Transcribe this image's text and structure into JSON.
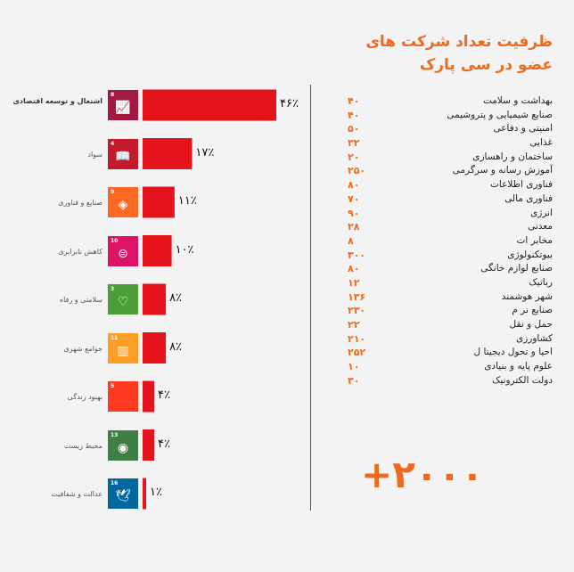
{
  "panel_title_line1": "ظرفیت تعداد شرکت های",
  "panel_title_line2": "عضو در سی پارک",
  "chart_data": {
    "type": "bar",
    "orientation": "horizontal",
    "categories": [
      "اشتغال و توسعه اقتصادی",
      "سواد",
      "صنایع و فناوری",
      "کاهش نابرابری",
      "سلامتی و رفاه",
      "جوامع شهری",
      "بهبود زندگی",
      "محیط زیست",
      "عدالت و شفافیت"
    ],
    "values": [
      46,
      17,
      11,
      10,
      8,
      8,
      4,
      4,
      1
    ],
    "value_labels": [
      "۴۶٪",
      "۱۷٪",
      "۱۱٪",
      "۱۰٪",
      "۸٪",
      "۸٪",
      "۴٪",
      "۴٪",
      "۱٪"
    ],
    "xlim": [
      0,
      46
    ],
    "bar_color": "#e5141c"
  },
  "sdg_icons": [
    {
      "num": "8",
      "color": "#a21942",
      "icon": "growth-chart-icon",
      "glyph": "📈"
    },
    {
      "num": "4",
      "color": "#c5192d",
      "icon": "book-icon",
      "glyph": "📖"
    },
    {
      "num": "9",
      "color": "#fd6925",
      "icon": "cubes-icon",
      "glyph": "◈"
    },
    {
      "num": "10",
      "color": "#dd1367",
      "icon": "equality-icon",
      "glyph": "⊜"
    },
    {
      "num": "3",
      "color": "#4c9f38",
      "icon": "heartbeat-icon",
      "glyph": "♡"
    },
    {
      "num": "11",
      "color": "#fd9d24",
      "icon": "buildings-icon",
      "glyph": "▥"
    },
    {
      "num": "5",
      "color": "#ff3a21",
      "icon": "blank-icon",
      "glyph": ""
    },
    {
      "num": "13",
      "color": "#3f7e44",
      "icon": "eye-icon",
      "glyph": "◉"
    },
    {
      "num": "16",
      "color": "#00689d",
      "icon": "dove-icon",
      "glyph": "🕊"
    }
  ],
  "sectors": [
    {
      "name": "بهداشت و سلامت",
      "count": "۴۰"
    },
    {
      "name": "صنایع شیمیایی و پتروشیمی",
      "count": "۴۰"
    },
    {
      "name": "امنیتی و دفاعی",
      "count": "۵۰"
    },
    {
      "name": "غذایی",
      "count": "۳۲"
    },
    {
      "name": "ساختمان و راهسازی",
      "count": "۲۰"
    },
    {
      "name": "آموزش رسانه و سرگرمی",
      "count": "۲۵۰"
    },
    {
      "name": "فناوری اطلاعات",
      "count": "۸۰"
    },
    {
      "name": "فناوری مالی",
      "count": "۷۰"
    },
    {
      "name": "انرژی",
      "count": "۹۰"
    },
    {
      "name": "معدنی",
      "count": "۲۸"
    },
    {
      "name": "مخابر ات",
      "count": "۸"
    },
    {
      "name": "بیوتکنولوژی",
      "count": "۳۰۰"
    },
    {
      "name": "صنایع لوازم خانگی",
      "count": "۸۰"
    },
    {
      "name": "رباتیک",
      "count": "۱۲"
    },
    {
      "name": "شهر هوشمند",
      "count": "۱۳۶"
    },
    {
      "name": "صنایع نر م",
      "count": "۲۳۰"
    },
    {
      "name": "حمل و نقل",
      "count": "۲۲"
    },
    {
      "name": "کشاورزی",
      "count": "۲۱۰"
    },
    {
      "name": "احیا و تحول دیجیتا ل",
      "count": "۲۵۲"
    },
    {
      "name": "علوم پایه و بنیادی",
      "count": "۱۰"
    },
    {
      "name": "دولت الکترونیک",
      "count": "۳۰"
    }
  ],
  "total_label": "+۲۰۰۰"
}
